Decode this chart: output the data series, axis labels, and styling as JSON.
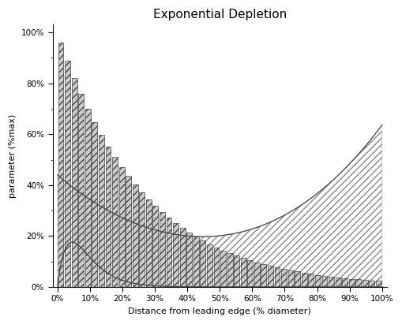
{
  "title": "Exponential Depletion",
  "xlabel": "Distance from leading edge (% diameter)",
  "ylabel": "parameter (%max)",
  "bar_color": "#cccccc",
  "bar_edge_color": "#444444",
  "background_color": "#ffffff",
  "curve_color": "#444444",
  "xlim": [
    0,
    100
  ],
  "ylim": [
    0,
    100
  ],
  "n_bars": 48,
  "bar_decay_k": 3.8,
  "upper_A": 44.0,
  "upper_k": 2.8,
  "upper_B": 0.0,
  "lower_A": 44.0,
  "lower_k": 5.5,
  "lower_B": 0.0,
  "upper_rise_coeff": 0.55,
  "upper_rise_exp": 2.8,
  "lower_rise_coeff": 0.03,
  "lower_rise_exp": 2.2
}
